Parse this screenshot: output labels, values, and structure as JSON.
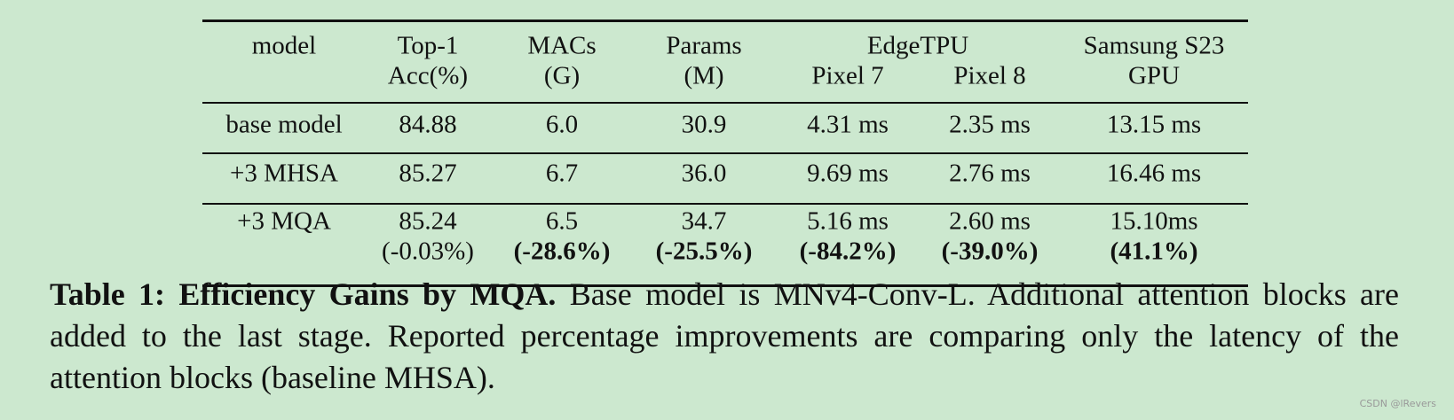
{
  "table": {
    "header": {
      "group": "EdgeTPU",
      "cells": [
        [
          "model"
        ],
        [
          "Top-1",
          "Acc(%)"
        ],
        [
          "MACs",
          "(G)"
        ],
        [
          "Params",
          "(M)"
        ],
        [
          "Pixel 7"
        ],
        [
          "Pixel 8"
        ],
        [
          "Samsung S23",
          "GPU"
        ]
      ]
    },
    "rows": [
      {
        "cells": [
          "base model",
          "84.88",
          "6.0",
          "30.9",
          "4.31 ms",
          "2.35 ms",
          "13.15 ms"
        ]
      },
      {
        "cells": [
          "+3 MHSA",
          "85.27",
          "6.7",
          "36.0",
          "9.69 ms",
          "2.76 ms",
          "16.46 ms"
        ]
      },
      {
        "cells": [
          "+3 MQA",
          "85.24",
          "6.5",
          "34.7",
          "5.16 ms",
          "2.60 ms",
          "15.10ms"
        ],
        "changes": [
          "(-0.03%)",
          "(-28.6%)",
          "(-25.5%)",
          "(-84.2%)",
          "(-39.0%)",
          "(41.1%)"
        ]
      }
    ]
  },
  "caption": {
    "label": "Table 1: Efficiency Gains by MQA.",
    "text": "Base model is MNv4-Conv-L. Additional attention blocks are added to the last stage. Reported percentage improvements are comparing only the latency of the attention blocks (baseline MHSA)."
  },
  "watermark": "CSDN @lRevers"
}
